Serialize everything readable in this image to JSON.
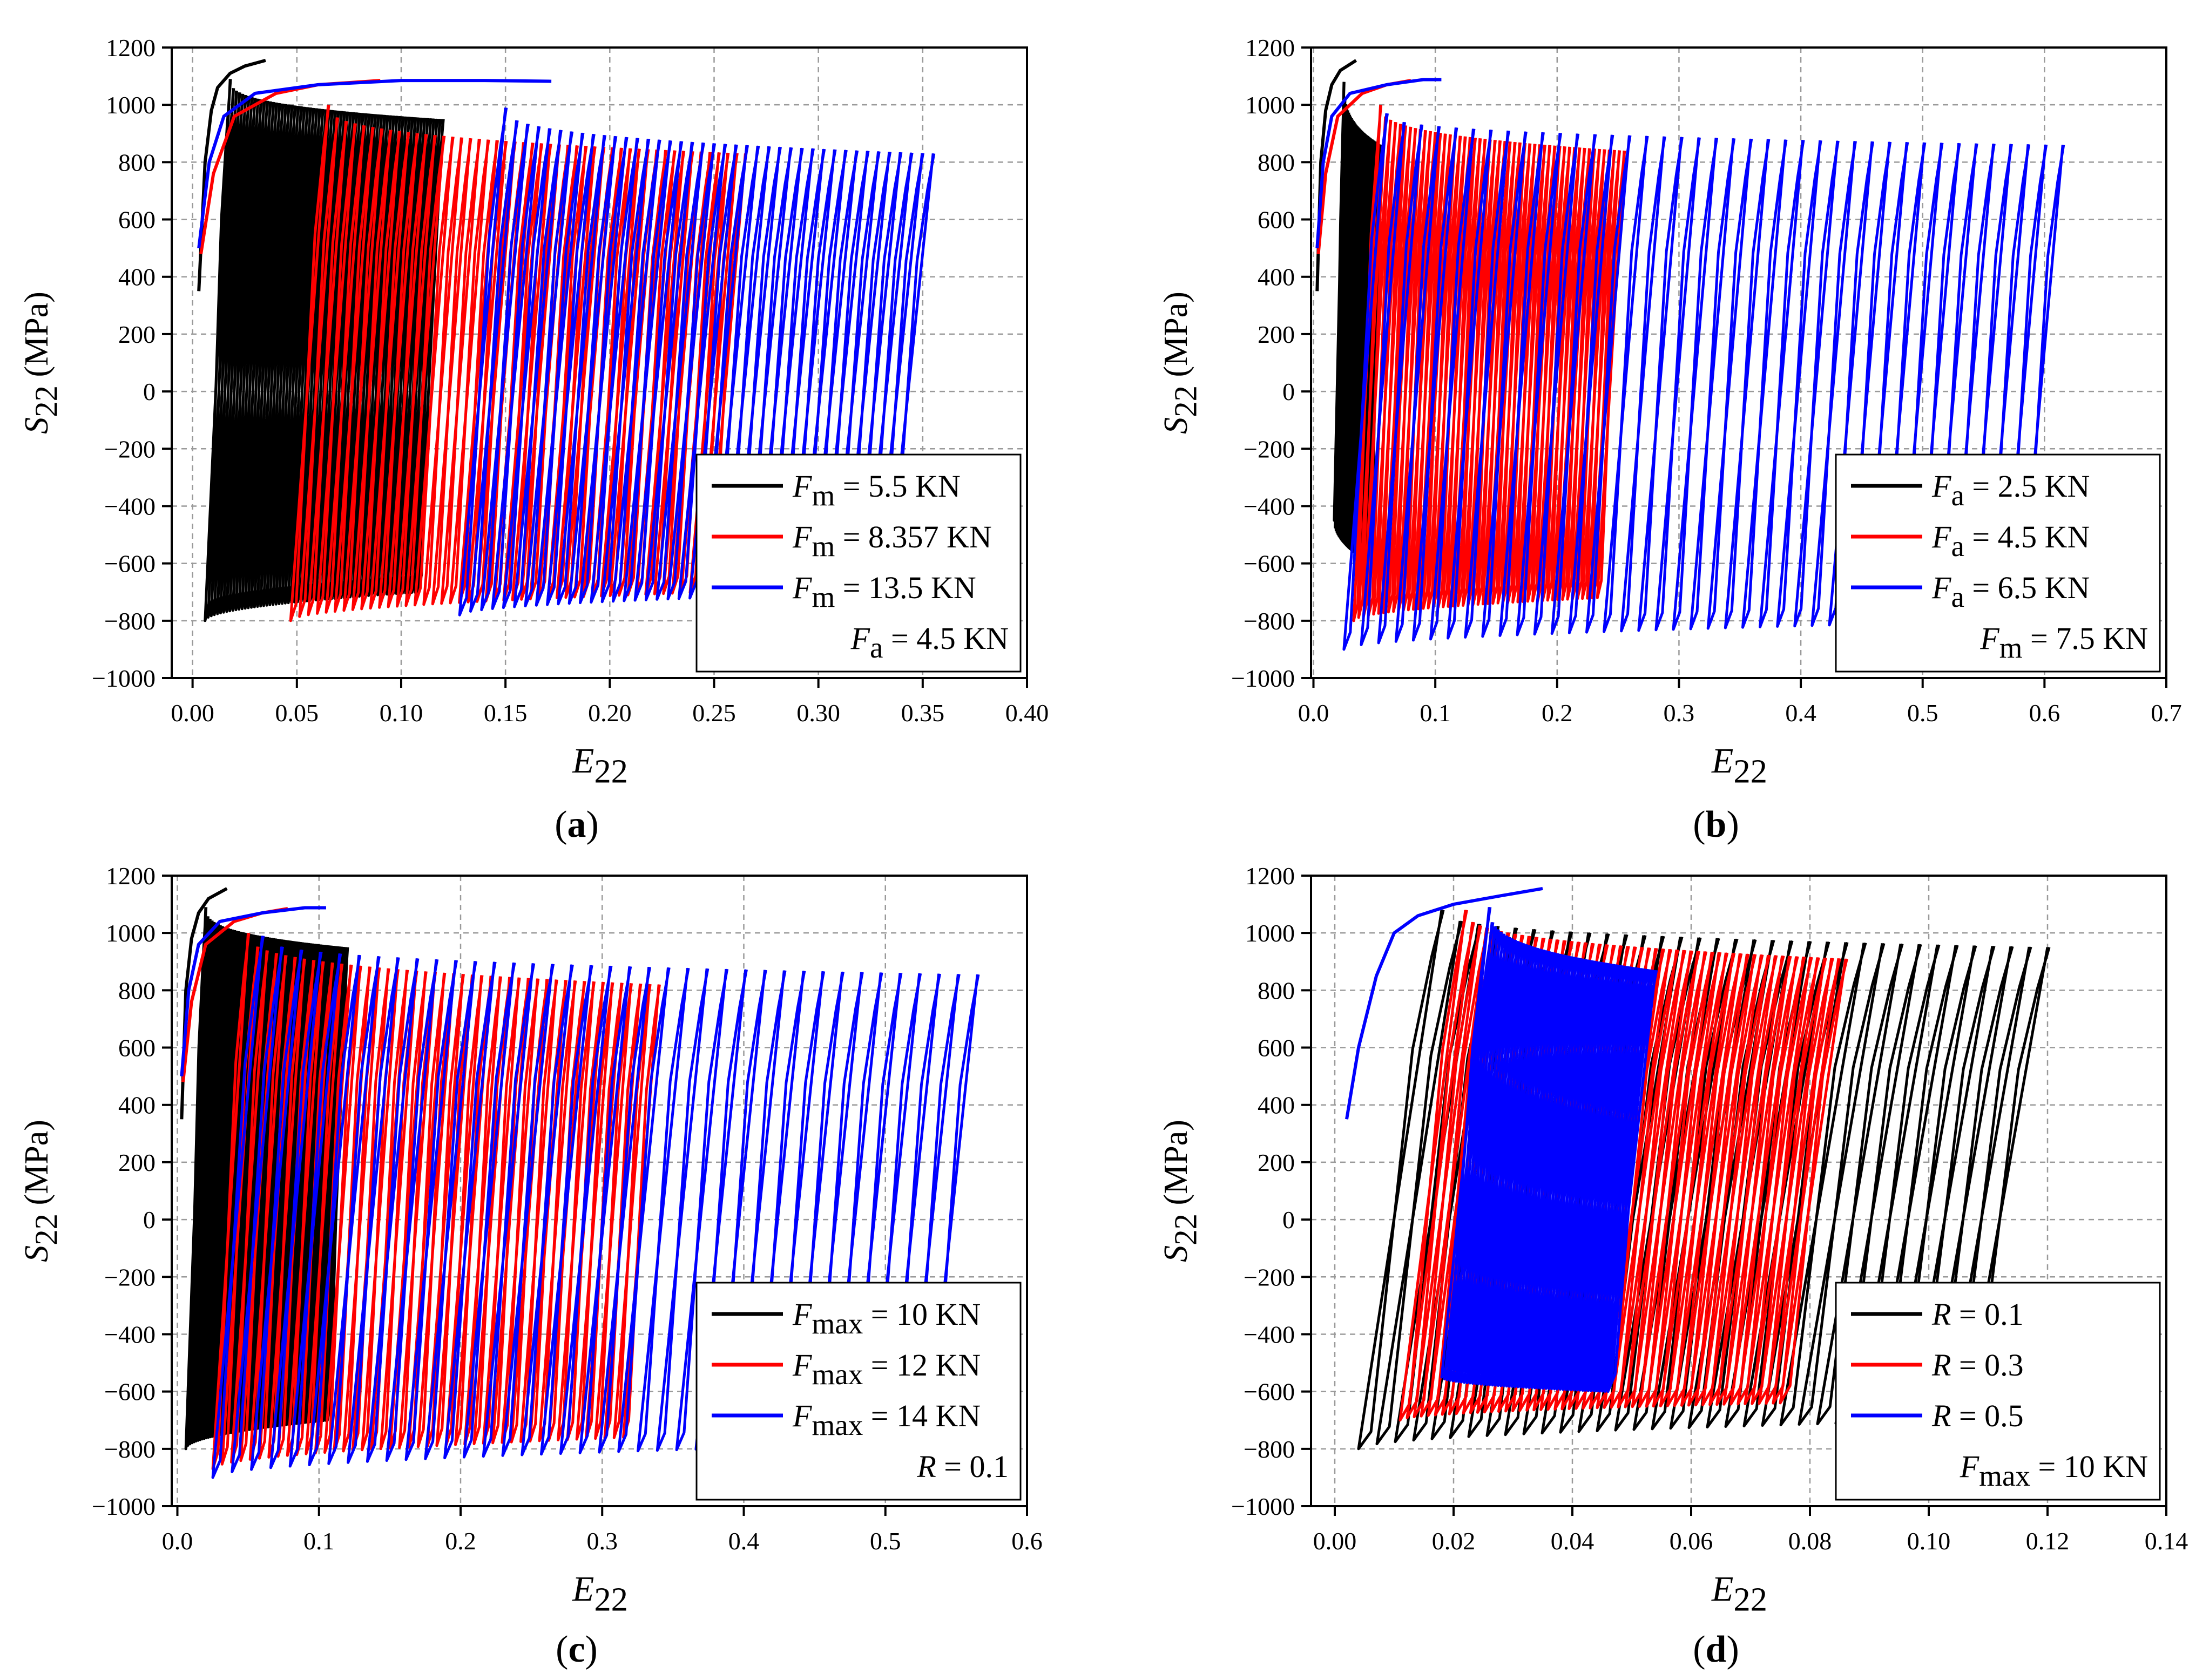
{
  "figure": {
    "panels_count": 4
  },
  "chart_data": [
    {
      "id": "a",
      "type": "line",
      "panel_label": "a",
      "xlabel_base": "E",
      "xlabel_sub": "22",
      "ylabel_base": "S",
      "ylabel_sub": "22",
      "ylabel_unit": " (MPa)",
      "xlim": [
        -0.01,
        0.4
      ],
      "ylim": [
        -1000,
        1200
      ],
      "xticks": [
        0.0,
        0.05,
        0.1,
        0.15,
        0.2,
        0.25,
        0.3,
        0.35,
        0.4
      ],
      "xtick_labels": [
        "0.00",
        "0.05",
        "0.10",
        "0.15",
        "0.20",
        "0.25",
        "0.30",
        "0.35",
        "0.40"
      ],
      "yticks": [
        -1000,
        -800,
        -600,
        -400,
        -200,
        0,
        200,
        400,
        600,
        800,
        1000,
        1200
      ],
      "ytick_labels": [
        "−1000",
        "−800",
        "−600",
        "−400",
        "−200",
        "0",
        "200",
        "400",
        "600",
        "800",
        "1000",
        "1200"
      ],
      "grid": true,
      "legend_position": "bottom-right",
      "legend_note": {
        "base": "F",
        "sub": "a",
        "text": " = 4.5 KN"
      },
      "series": [
        {
          "name": "Fm = 5.5 KN",
          "label_base": "F",
          "label_sub": "m",
          "label_text": " = 5.5 KN",
          "color": "#000000",
          "mono_x": [
            0.003,
            0.006,
            0.009,
            0.012,
            0.018,
            0.025,
            0.035
          ],
          "mono_y": [
            350,
            800,
            980,
            1060,
            1110,
            1135,
            1155
          ],
          "x_start": 0.018,
          "x_end": 0.12,
          "cycles": 70,
          "peak_first": 1090,
          "peak_last": 950,
          "trough_first": -800,
          "trough_last": -700,
          "loop_width": 0.012
        },
        {
          "name": "Fm = 8.357 KN",
          "label_base": "F",
          "label_sub": "m",
          "label_text": " = 8.357 KN",
          "color": "#ff0000",
          "mono_x": [
            0.004,
            0.01,
            0.02,
            0.04,
            0.06,
            0.09
          ],
          "mono_y": [
            480,
            760,
            960,
            1040,
            1070,
            1085
          ],
          "x_start": 0.065,
          "x_end": 0.265,
          "cycles": 48,
          "peak_first": 1000,
          "peak_last": 830,
          "trough_first": -800,
          "trough_last": -700,
          "loop_width": 0.018
        },
        {
          "name": "Fm = 13.5 KN",
          "label_base": "F",
          "label_sub": "m",
          "label_text": " = 13.5 KN",
          "color": "#0000ff",
          "mono_x": [
            0.003,
            0.008,
            0.015,
            0.03,
            0.06,
            0.1,
            0.14,
            0.172
          ],
          "mono_y": [
            500,
            800,
            960,
            1040,
            1070,
            1085,
            1085,
            1082
          ],
          "x_start": 0.15,
          "x_end": 0.355,
          "cycles": 40,
          "peak_first": 990,
          "peak_last": 830,
          "trough_first": -780,
          "trough_last": -700,
          "loop_width": 0.022
        }
      ]
    },
    {
      "id": "b",
      "type": "line",
      "panel_label": "b",
      "xlabel_base": "E",
      "xlabel_sub": "22",
      "ylabel_base": "S",
      "ylabel_sub": "22",
      "ylabel_unit": " (MPa)",
      "xlim": [
        -0.002,
        0.7
      ],
      "ylim": [
        -1000,
        1200
      ],
      "xticks": [
        0.0,
        0.1,
        0.2,
        0.3,
        0.4,
        0.5,
        0.6,
        0.7
      ],
      "xtick_labels": [
        "0.0",
        "0.1",
        "0.2",
        "0.3",
        "0.4",
        "0.5",
        "0.6",
        "0.7"
      ],
      "yticks": [
        -1000,
        -800,
        -600,
        -400,
        -200,
        0,
        200,
        400,
        600,
        800,
        1000,
        1200
      ],
      "ytick_labels": [
        "−1000",
        "−800",
        "−600",
        "−400",
        "−200",
        "0",
        "200",
        "400",
        "600",
        "800",
        "1000",
        "1200"
      ],
      "grid": true,
      "legend_position": "bottom-right",
      "legend_note": {
        "base": "F",
        "sub": "m",
        "text": " = 7.5 KN"
      },
      "series": [
        {
          "name": "Fa = 2.5 KN",
          "label_base": "F",
          "label_sub": "a",
          "label_text": " = 2.5 KN",
          "color": "#000000",
          "mono_x": [
            0.003,
            0.006,
            0.01,
            0.015,
            0.022,
            0.035
          ],
          "mono_y": [
            350,
            800,
            980,
            1070,
            1120,
            1155
          ],
          "x_start": 0.025,
          "x_end": 0.055,
          "cycles": 40,
          "peak_first": 1080,
          "peak_last": 860,
          "trough_first": -450,
          "trough_last": -600,
          "loop_width": 0.008
        },
        {
          "name": "Fa = 4.5 KN",
          "label_base": "F",
          "label_sub": "a",
          "label_text": " = 4.5 KN",
          "color": "#ff0000",
          "mono_x": [
            0.004,
            0.01,
            0.02,
            0.04,
            0.06,
            0.08
          ],
          "mono_y": [
            480,
            760,
            960,
            1040,
            1070,
            1085
          ],
          "x_start": 0.055,
          "x_end": 0.255,
          "cycles": 50,
          "peak_first": 1000,
          "peak_last": 840,
          "trough_first": -800,
          "trough_last": -720,
          "loop_width": 0.022
        },
        {
          "name": "Fa = 6.5 KN",
          "label_base": "F",
          "label_sub": "a",
          "label_text": " = 6.5 KN",
          "color": "#0000ff",
          "mono_x": [
            0.003,
            0.008,
            0.015,
            0.03,
            0.06,
            0.09,
            0.105
          ],
          "mono_y": [
            500,
            800,
            960,
            1040,
            1070,
            1088,
            1088
          ],
          "x_start": 0.06,
          "x_end": 0.615,
          "cycles": 40,
          "peak_first": 970,
          "peak_last": 860,
          "trough_first": -900,
          "trough_last": -800,
          "loop_width": 0.035
        }
      ]
    },
    {
      "id": "c",
      "type": "line",
      "panel_label": "c",
      "xlabel_base": "E",
      "xlabel_sub": "22",
      "ylabel_base": "S",
      "ylabel_sub": "22",
      "ylabel_unit": " (MPa)",
      "xlim": [
        -0.004,
        0.6
      ],
      "ylim": [
        -1000,
        1200
      ],
      "xticks": [
        0.0,
        0.1,
        0.2,
        0.3,
        0.4,
        0.5,
        0.6
      ],
      "xtick_labels": [
        "0.0",
        "0.1",
        "0.2",
        "0.3",
        "0.4",
        "0.5",
        "0.6"
      ],
      "yticks": [
        -1000,
        -800,
        -600,
        -400,
        -200,
        0,
        200,
        400,
        600,
        800,
        1000,
        1200
      ],
      "ytick_labels": [
        "−1000",
        "−800",
        "−600",
        "−400",
        "−200",
        "0",
        "200",
        "400",
        "600",
        "800",
        "1000",
        "1200"
      ],
      "grid": true,
      "legend_position": "bottom-right",
      "legend_note": {
        "base": "R",
        "sub": "",
        "text": " = 0.1"
      },
      "series": [
        {
          "name": "Fmax = 10 KN",
          "label_base": "F",
          "label_sub": "max",
          "label_text": " = 10 KN",
          "color": "#000000",
          "mono_x": [
            0.003,
            0.006,
            0.01,
            0.015,
            0.022,
            0.035
          ],
          "mono_y": [
            350,
            800,
            980,
            1070,
            1120,
            1155
          ],
          "x_start": 0.02,
          "x_end": 0.12,
          "cycles": 70,
          "peak_first": 1090,
          "peak_last": 950,
          "trough_first": -800,
          "trough_last": -700,
          "loop_width": 0.014
        },
        {
          "name": "Fmax = 12 KN",
          "label_base": "F",
          "label_sub": "max",
          "label_text": " = 12 KN",
          "color": "#ff0000",
          "mono_x": [
            0.004,
            0.01,
            0.02,
            0.04,
            0.06,
            0.078
          ],
          "mono_y": [
            480,
            760,
            960,
            1040,
            1070,
            1085
          ],
          "x_start": 0.05,
          "x_end": 0.34,
          "cycles": 45,
          "peak_first": 1000,
          "peak_last": 820,
          "trough_first": -870,
          "trough_last": -760,
          "loop_width": 0.025
        },
        {
          "name": "Fmax = 14 KN",
          "label_base": "F",
          "label_sub": "max",
          "label_text": " = 14 KN",
          "color": "#0000ff",
          "mono_x": [
            0.003,
            0.008,
            0.015,
            0.03,
            0.06,
            0.09,
            0.105
          ],
          "mono_y": [
            500,
            800,
            960,
            1040,
            1070,
            1088,
            1088
          ],
          "x_start": 0.06,
          "x_end": 0.565,
          "cycles": 38,
          "peak_first": 990,
          "peak_last": 855,
          "trough_first": -900,
          "trough_last": -780,
          "loop_width": 0.035
        }
      ]
    },
    {
      "id": "d",
      "type": "line",
      "panel_label": "d",
      "xlabel_base": "E",
      "xlabel_sub": "22",
      "ylabel_base": "S",
      "ylabel_sub": "22",
      "ylabel_unit": " (MPa)",
      "xlim": [
        -0.004,
        0.14
      ],
      "ylim": [
        -1000,
        1200
      ],
      "xticks": [
        0.0,
        0.02,
        0.04,
        0.06,
        0.08,
        0.1,
        0.12,
        0.14
      ],
      "xtick_labels": [
        "0.00",
        "0.02",
        "0.04",
        "0.06",
        "0.08",
        "0.10",
        "0.12",
        "0.14"
      ],
      "yticks": [
        -1000,
        -800,
        -600,
        -400,
        -200,
        0,
        200,
        400,
        600,
        800,
        1000,
        1200
      ],
      "ytick_labels": [
        "−1000",
        "−800",
        "−600",
        "−400",
        "−200",
        "0",
        "200",
        "400",
        "600",
        "800",
        "1000",
        "1200"
      ],
      "grid": true,
      "legend_position": "bottom-right",
      "legend_note": {
        "base": "F",
        "sub": "max",
        "text": " = 10 KN"
      },
      "series": [
        {
          "name": "R = 0.1",
          "label_base": "R",
          "label_sub": "",
          "label_text": " = 0.1",
          "color": "#000000",
          "mono_x": [],
          "mono_y": [],
          "x_start": 0.018,
          "x_end": 0.12,
          "cycles": 34,
          "peak_first": 1080,
          "peak_last": 950,
          "trough_first": -800,
          "trough_last": -700,
          "loop_width": 0.014
        },
        {
          "name": "R = 0.3",
          "label_base": "R",
          "label_sub": "",
          "label_text": " = 0.3",
          "color": "#ff0000",
          "mono_x": [],
          "mono_y": [],
          "x_start": 0.022,
          "x_end": 0.086,
          "cycles": 55,
          "peak_first": 1080,
          "peak_last": 910,
          "trough_first": -700,
          "trough_last": -640,
          "loop_width": 0.011
        },
        {
          "name": "R = 0.5",
          "label_base": "R",
          "label_sub": "",
          "label_text": " = 0.5",
          "color": "#0000ff",
          "mono_x": [
            0.002,
            0.004,
            0.007,
            0.01,
            0.014,
            0.02,
            0.028,
            0.035
          ],
          "mono_y": [
            350,
            600,
            850,
            1000,
            1060,
            1100,
            1130,
            1155
          ],
          "x_start": 0.026,
          "x_end": 0.054,
          "cycles": 60,
          "peak_first": 1090,
          "peak_last": 870,
          "trough_first": -550,
          "trough_last": -600,
          "loop_width": 0.008
        }
      ]
    }
  ]
}
